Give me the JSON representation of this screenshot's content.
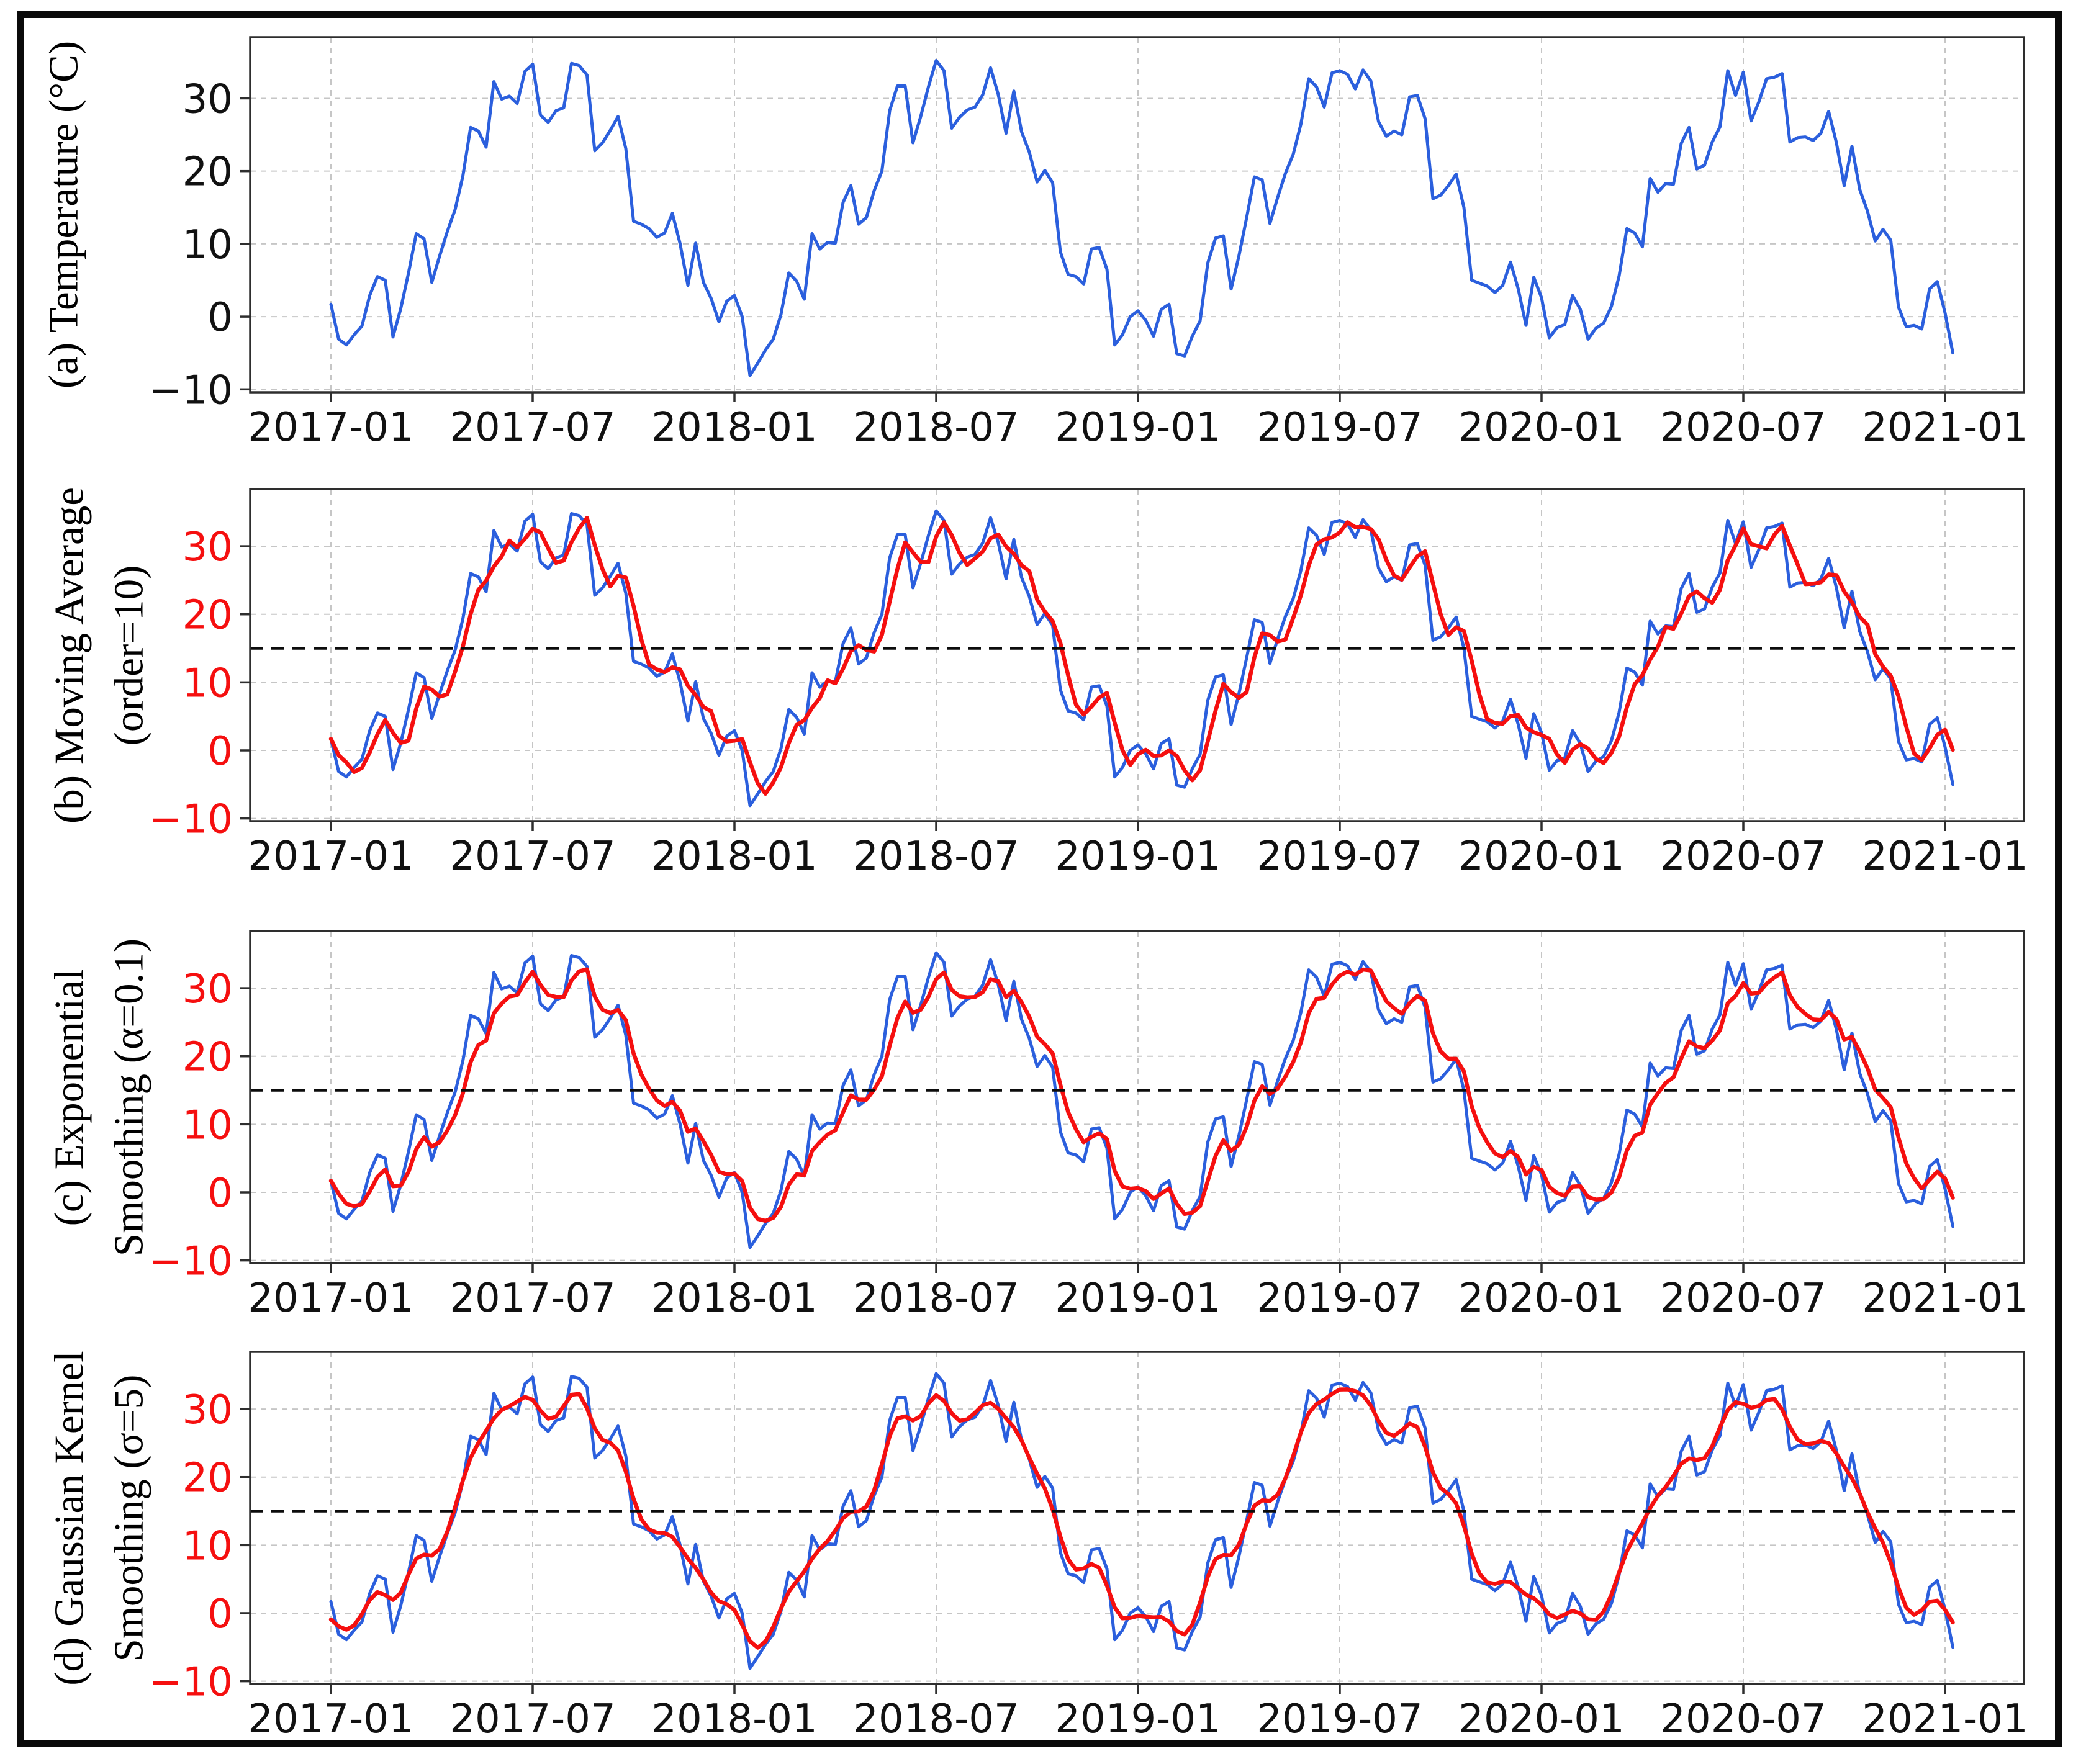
{
  "figure": {
    "background": "#ffffff",
    "border_color": "#0a0a0a"
  },
  "chart_data": {
    "type": "line",
    "title": "",
    "description_note": "",
    "x_axis": {
      "tick_labels": [
        "2017-01",
        "2017-07",
        "2018-01",
        "2018-07",
        "2019-01",
        "2019-07",
        "2020-01",
        "2020-07",
        "2021-01"
      ],
      "unit": "weeks since 2017-01"
    },
    "y_axis": {
      "ticks": [
        -10,
        0,
        10,
        20,
        30
      ],
      "range_shown": [
        -10.4,
        38.4
      ]
    },
    "mean_line_y": 15,
    "colors": {
      "raw_series": "#2b5fdd",
      "smoothed_series": "#f50f0f",
      "grid": "#c6c6c6",
      "mean_line": "#0c0c0c",
      "tick_labels_black": "#111111",
      "tick_labels_red": "#f50f0f"
    },
    "series": [
      {
        "name": "temperature",
        "color": "#2b5fdd",
        "values": [
          1.7,
          -3.1,
          -3.9,
          -2.5,
          -1.3,
          2.9,
          5.5,
          5.0,
          -2.8,
          1.1,
          6.0,
          11.4,
          10.7,
          4.7,
          8.3,
          11.7,
          14.7,
          19.3,
          26.0,
          25.5,
          23.3,
          32.3,
          29.9,
          30.3,
          29.3,
          33.7,
          34.7,
          27.7,
          26.7,
          28.3,
          28.7,
          34.8,
          34.5,
          33.2,
          22.8,
          23.9,
          25.6,
          27.5,
          23.1,
          13.1,
          12.7,
          12.1,
          10.9,
          11.5,
          14.2,
          10.0,
          4.3,
          10.1,
          4.7,
          2.5,
          -0.7,
          2.1,
          2.9,
          0.0,
          -8.1,
          -6.4,
          -4.6,
          -3.1,
          0.3,
          6.0,
          4.9,
          2.4,
          11.4,
          9.3,
          10.2,
          10.1,
          15.7,
          18.0,
          12.7,
          13.6,
          17.3,
          20.0,
          28.3,
          31.7,
          31.7,
          23.9,
          27.5,
          31.6,
          35.2,
          33.8,
          25.9,
          27.4,
          28.4,
          28.8,
          30.5,
          34.2,
          30.5,
          25.2,
          31.0,
          25.4,
          22.6,
          18.5,
          20.1,
          18.4,
          8.9,
          5.8,
          5.5,
          4.5,
          9.3,
          9.5,
          6.5,
          -3.9,
          -2.5,
          0.0,
          0.8,
          -0.5,
          -2.7,
          1.0,
          1.7,
          -5.1,
          -5.4,
          -2.7,
          -0.6,
          7.4,
          10.8,
          11.1,
          3.8,
          8.3,
          13.6,
          19.2,
          18.8,
          12.8,
          16.4,
          19.7,
          22.3,
          26.5,
          32.7,
          31.6,
          28.8,
          33.5,
          33.8,
          33.3,
          31.3,
          33.9,
          32.4,
          26.8,
          24.8,
          25.5,
          25.0,
          30.2,
          30.4,
          27.2,
          16.2,
          16.7,
          18.0,
          19.6,
          15.0,
          5.0,
          4.6,
          4.2,
          3.3,
          4.3,
          7.5,
          3.8,
          -1.2,
          5.4,
          2.6,
          -2.9,
          -1.5,
          -1.1,
          2.9,
          1.0,
          -3.1,
          -1.6,
          -0.9,
          1.4,
          5.6,
          12.1,
          11.5,
          9.6,
          19.0,
          17.1,
          18.3,
          18.2,
          23.8,
          26.0,
          20.3,
          20.8,
          24.0,
          26.1,
          33.8,
          30.4,
          33.6,
          26.9,
          29.5,
          32.7,
          32.9,
          33.4,
          24.0,
          24.6,
          24.7,
          24.2,
          25.2,
          28.2,
          23.9,
          18.0,
          23.4,
          17.5,
          14.5,
          10.4,
          12.0,
          10.5,
          1.3,
          -1.4,
          -1.2,
          -1.7,
          3.8,
          4.8,
          0.5,
          -5.0
        ]
      }
    ],
    "panels": [
      {
        "id": "a",
        "ylabel_lines": [
          "(a) Temperature (°C)"
        ],
        "tick_label_color": "#111111",
        "has_mean_line": false,
        "smoothing": null
      },
      {
        "id": "b",
        "ylabel_lines": [
          "(b) Moving Average",
          "(order=10)"
        ],
        "tick_label_color": "#f50f0f",
        "has_mean_line": true,
        "smoothing": {
          "method": "moving_average",
          "order": 10
        }
      },
      {
        "id": "c",
        "ylabel_lines": [
          "(c) Exponential",
          "Smoothing (α=0.1)"
        ],
        "tick_label_color": "#f50f0f",
        "has_mean_line": true,
        "smoothing": {
          "method": "exponential",
          "alpha": 0.1
        }
      },
      {
        "id": "d",
        "ylabel_lines": [
          "(d) Gaussian Kernel",
          "Smoothing (σ=5)"
        ],
        "tick_label_color": "#f50f0f",
        "has_mean_line": true,
        "smoothing": {
          "method": "gaussian_kernel",
          "sigma": 5
        }
      }
    ]
  }
}
